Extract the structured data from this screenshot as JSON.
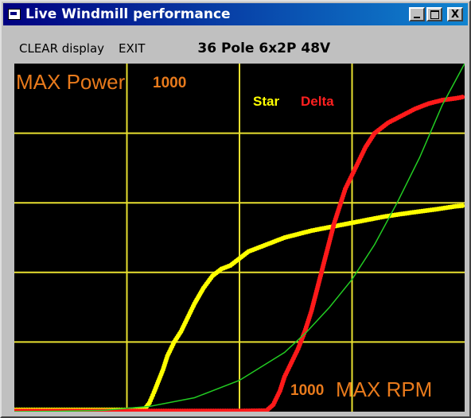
{
  "window": {
    "title": "Live Windmill performance",
    "title_bar_colors": [
      "#000080",
      "#1084d0"
    ],
    "buttons": {
      "minimize": "minimize-icon",
      "maximize": "maximize-icon",
      "close_label": "X"
    }
  },
  "menu": {
    "clear_label": "CLEAR display",
    "exit_label": "EXIT",
    "config_label": "36 Pole 6x2P 48V"
  },
  "plot": {
    "max_power_label": "MAX Power",
    "max_power_value": "1000",
    "max_rpm_label": "MAX RPM",
    "max_rpm_value": "1000",
    "legend_star": "Star",
    "legend_delta": "Delta",
    "colors": {
      "background": "#000000",
      "grid": "#e8e030",
      "star": "#ffff00",
      "delta": "#ff1a1a",
      "curve": "#22cc22",
      "label": "#e87a1c"
    }
  },
  "chart_data": {
    "type": "scatter",
    "xlabel": "",
    "ylabel": "",
    "xlim": [
      0,
      1000
    ],
    "ylim": [
      0,
      1000
    ],
    "grid": true,
    "legend": "top-right",
    "series": [
      {
        "name": "Star",
        "color": "#ffff00",
        "points": [
          [
            0,
            5
          ],
          [
            50,
            5
          ],
          [
            100,
            5
          ],
          [
            150,
            5
          ],
          [
            200,
            5
          ],
          [
            250,
            5
          ],
          [
            290,
            8
          ],
          [
            300,
            25
          ],
          [
            305,
            40
          ],
          [
            310,
            55
          ],
          [
            330,
            120
          ],
          [
            340,
            160
          ],
          [
            355,
            200
          ],
          [
            370,
            230
          ],
          [
            385,
            270
          ],
          [
            400,
            310
          ],
          [
            420,
            355
          ],
          [
            440,
            390
          ],
          [
            460,
            410
          ],
          [
            480,
            420
          ],
          [
            500,
            440
          ],
          [
            520,
            460
          ],
          [
            540,
            470
          ],
          [
            560,
            480
          ],
          [
            580,
            490
          ],
          [
            600,
            500
          ],
          [
            630,
            510
          ],
          [
            660,
            520
          ],
          [
            700,
            530
          ],
          [
            740,
            540
          ],
          [
            780,
            550
          ],
          [
            820,
            560
          ],
          [
            860,
            568
          ],
          [
            900,
            575
          ],
          [
            940,
            582
          ],
          [
            980,
            590
          ],
          [
            1000,
            592
          ]
        ]
      },
      {
        "name": "Delta",
        "color": "#ff1a1a",
        "points": [
          [
            0,
            2
          ],
          [
            100,
            2
          ],
          [
            200,
            2
          ],
          [
            300,
            2
          ],
          [
            400,
            2
          ],
          [
            500,
            2
          ],
          [
            560,
            3
          ],
          [
            575,
            20
          ],
          [
            590,
            60
          ],
          [
            600,
            100
          ],
          [
            615,
            140
          ],
          [
            630,
            180
          ],
          [
            645,
            230
          ],
          [
            660,
            290
          ],
          [
            670,
            340
          ],
          [
            680,
            390
          ],
          [
            690,
            440
          ],
          [
            700,
            490
          ],
          [
            710,
            540
          ],
          [
            720,
            580
          ],
          [
            735,
            640
          ],
          [
            750,
            680
          ],
          [
            765,
            720
          ],
          [
            780,
            760
          ],
          [
            800,
            800
          ],
          [
            830,
            830
          ],
          [
            860,
            850
          ],
          [
            890,
            870
          ],
          [
            920,
            885
          ],
          [
            950,
            895
          ],
          [
            980,
            900
          ],
          [
            1000,
            905
          ]
        ]
      },
      {
        "name": "",
        "color": "#22cc22",
        "line": true,
        "points": [
          [
            0,
            0
          ],
          [
            100,
            1
          ],
          [
            200,
            4
          ],
          [
            300,
            15
          ],
          [
            400,
            40
          ],
          [
            500,
            90
          ],
          [
            600,
            170
          ],
          [
            650,
            230
          ],
          [
            700,
            300
          ],
          [
            750,
            380
          ],
          [
            800,
            480
          ],
          [
            850,
            600
          ],
          [
            900,
            730
          ],
          [
            950,
            880
          ],
          [
            1000,
            1000
          ]
        ]
      }
    ]
  }
}
